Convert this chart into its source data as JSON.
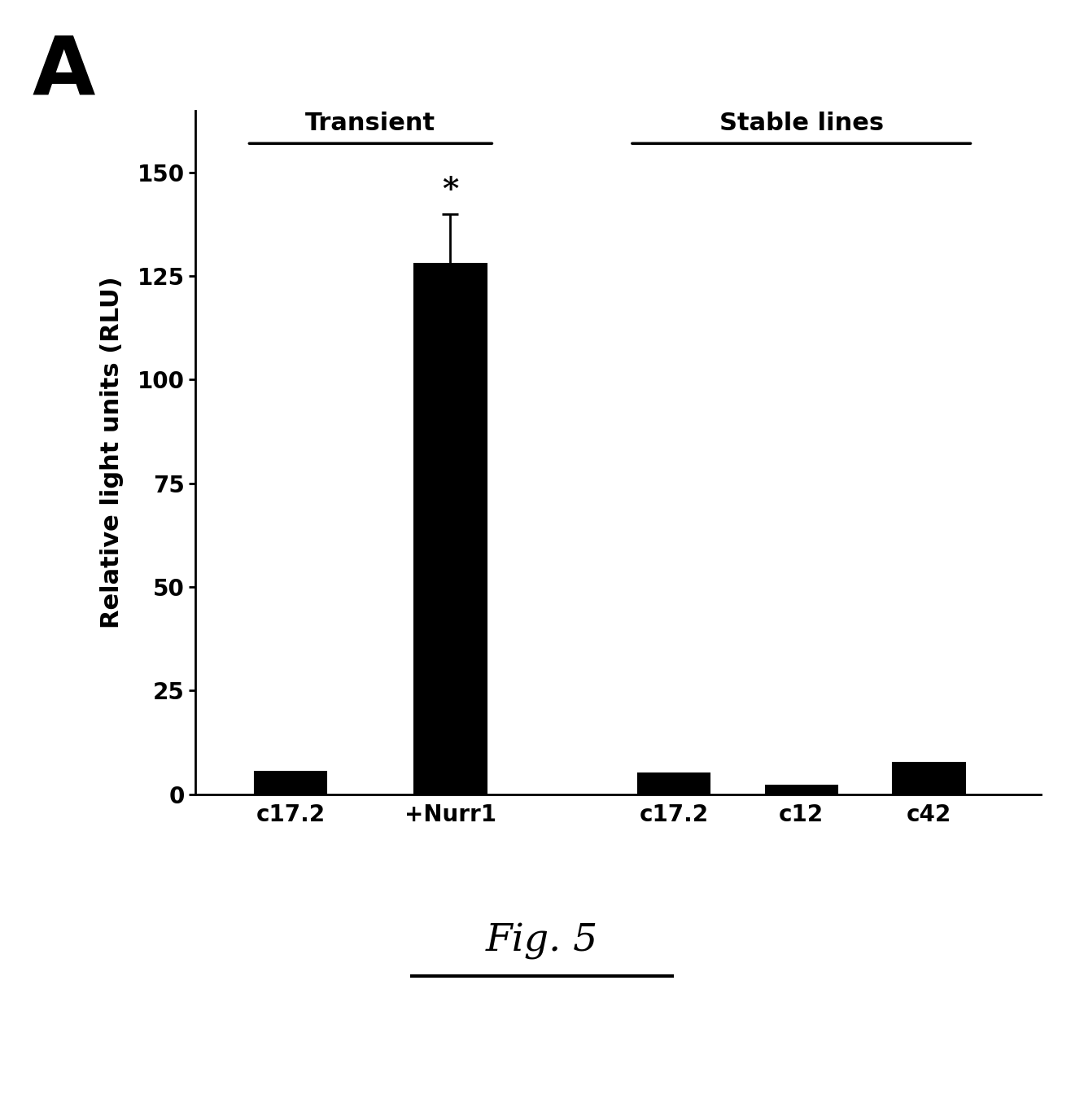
{
  "categories": [
    "c17.2",
    "+Nurr1",
    "c17.2",
    "c12",
    "c42"
  ],
  "values": [
    5.5,
    128,
    5.0,
    2.0,
    7.5
  ],
  "error_bars": [
    0,
    12,
    0,
    0,
    0
  ],
  "bar_color": "#000000",
  "bar_width": 0.45,
  "ylim": [
    0,
    165
  ],
  "yticks": [
    0,
    25,
    50,
    75,
    100,
    125,
    150
  ],
  "ylabel": "Relative light units (RLU)",
  "ylabel_fontsize": 22,
  "tick_fontsize": 20,
  "xlabel_fontsize": 20,
  "transient_label": "Transient",
  "stable_label": "Stable lines",
  "label_fontsize": 22,
  "star_annotation": "*",
  "star_fontsize": 28,
  "panel_label": "A",
  "panel_label_fontsize": 72,
  "fig_label": "Fig. 5",
  "fig_label_fontsize": 34,
  "background_color": "#ffffff",
  "x_positions": [
    1,
    2,
    3.4,
    4.2,
    5.0
  ],
  "bracket_y": 157,
  "xlim": [
    0.4,
    5.7
  ]
}
